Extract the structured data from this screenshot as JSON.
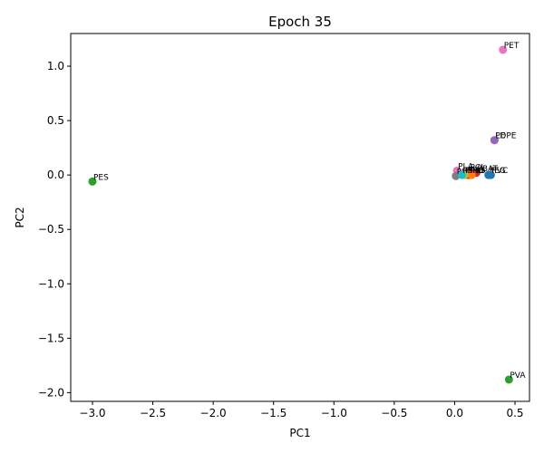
{
  "chart_data": {
    "type": "scatter",
    "title": "Epoch 35",
    "xlabel": "PC1",
    "ylabel": "PC2",
    "xlim": [
      -3.18,
      0.62
    ],
    "ylim": [
      -2.08,
      1.3
    ],
    "xticks": [
      -3.0,
      -2.5,
      -2.0,
      -1.5,
      -1.0,
      -0.5,
      0.0,
      0.5
    ],
    "xtick_labels": [
      "−3.0",
      "−2.5",
      "−2.0",
      "−1.5",
      "−1.0",
      "−0.5",
      "0.0",
      "0.5"
    ],
    "yticks": [
      -2.0,
      -1.5,
      -1.0,
      -0.5,
      0.0,
      0.5,
      1.0
    ],
    "ytick_labels": [
      "−2.0",
      "−1.5",
      "−1.0",
      "−0.5",
      "0.0",
      "0.5",
      "1.0"
    ],
    "grid": false,
    "legend": false,
    "points": [
      {
        "label": "PET",
        "x": 0.4,
        "y": 1.15,
        "color": "#e377c2"
      },
      {
        "label": "PE",
        "x": 0.33,
        "y": 0.32,
        "color": "#9467bd"
      },
      {
        "label": "LDPE",
        "x": 0.33,
        "y": 0.32,
        "color": "#9467bd"
      },
      {
        "label": "PES",
        "x": -3.0,
        "y": -0.06,
        "color": "#2ca02c"
      },
      {
        "label": "PVA",
        "x": 0.45,
        "y": -1.88,
        "color": "#2ca02c"
      },
      {
        "label": "PLA",
        "x": 0.02,
        "y": 0.04,
        "color": "#e377c2"
      },
      {
        "label": "PBAT",
        "x": 0.18,
        "y": 0.02,
        "color": "#d62728"
      },
      {
        "label": "PCL",
        "x": 0.12,
        "y": 0.03,
        "color": "#8c564b"
      },
      {
        "label": "PHB",
        "x": 0.1,
        "y": 0.0,
        "color": "#ff7f0e"
      },
      {
        "label": "PHA",
        "x": 0.01,
        "y": -0.01,
        "color": "#7f7f7f"
      },
      {
        "label": "PBS",
        "x": 0.12,
        "y": 0.0,
        "color": "#d62728"
      },
      {
        "label": "PU",
        "x": 0.14,
        "y": 0.0,
        "color": "#ff7f0e"
      },
      {
        "label": "PP",
        "x": 0.08,
        "y": 0.0,
        "color": "#bcbd22"
      },
      {
        "label": "PS",
        "x": 0.06,
        "y": 0.0,
        "color": "#17becf"
      },
      {
        "label": "PEG",
        "x": 0.28,
        "y": 0.0,
        "color": "#1f77b4"
      },
      {
        "label": "PVC",
        "x": 0.3,
        "y": 0.0,
        "color": "#1f77b4"
      }
    ]
  }
}
